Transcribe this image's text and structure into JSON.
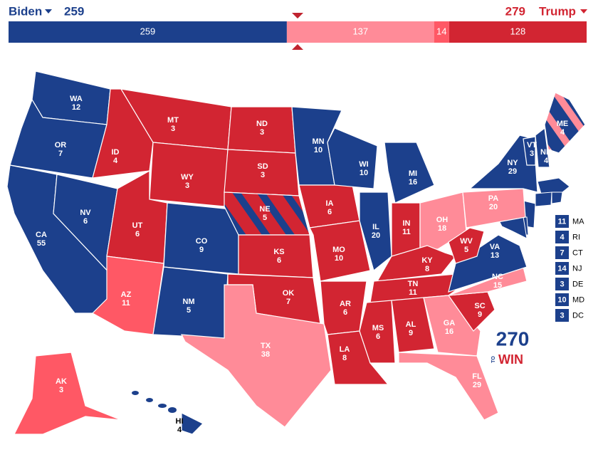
{
  "header": {
    "left": {
      "name": "Biden",
      "total": 259,
      "color": "#1c408c"
    },
    "right": {
      "name": "Trump",
      "total": 279,
      "color": "#d22532"
    }
  },
  "bar": {
    "segments": [
      {
        "value": 259,
        "color": "#1c408c"
      },
      {
        "value": 137,
        "color": "#ff8b98"
      },
      {
        "value": 14,
        "color": "#ff5865"
      },
      {
        "value": 128,
        "color": "#d22532"
      }
    ]
  },
  "states": [
    {
      "label": "WA",
      "votes": 12,
      "color": "#1c408c"
    },
    {
      "label": "OR",
      "votes": 7,
      "color": "#1c408c"
    },
    {
      "label": "CA",
      "votes": 55,
      "color": "#1c408c"
    },
    {
      "label": "NV",
      "votes": 6,
      "color": "#1c408c"
    },
    {
      "label": "ID",
      "votes": 4,
      "color": "#d22532"
    },
    {
      "label": "MT",
      "votes": 3,
      "color": "#d22532"
    },
    {
      "label": "WY",
      "votes": 3,
      "color": "#d22532"
    },
    {
      "label": "UT",
      "votes": 6,
      "color": "#d22532"
    },
    {
      "label": "CO",
      "votes": 9,
      "color": "#1c408c"
    },
    {
      "label": "AZ",
      "votes": 11,
      "color": "#ff5865"
    },
    {
      "label": "NM",
      "votes": 5,
      "color": "#1c408c"
    },
    {
      "label": "ND",
      "votes": 3,
      "color": "#d22532"
    },
    {
      "label": "SD",
      "votes": 3,
      "color": "#d22532"
    },
    {
      "label": "NE",
      "votes": 5,
      "color": "#d22532",
      "stripe": "#1c408c"
    },
    {
      "label": "KS",
      "votes": 6,
      "color": "#d22532"
    },
    {
      "label": "OK",
      "votes": 7,
      "color": "#d22532"
    },
    {
      "label": "TX",
      "votes": 38,
      "color": "#ff8b98"
    },
    {
      "label": "MN",
      "votes": 10,
      "color": "#1c408c"
    },
    {
      "label": "IA",
      "votes": 6,
      "color": "#d22532"
    },
    {
      "label": "MO",
      "votes": 10,
      "color": "#d22532"
    },
    {
      "label": "AR",
      "votes": 6,
      "color": "#d22532"
    },
    {
      "label": "LA",
      "votes": 8,
      "color": "#d22532"
    },
    {
      "label": "WI",
      "votes": 10,
      "color": "#1c408c"
    },
    {
      "label": "IL",
      "votes": 20,
      "color": "#1c408c"
    },
    {
      "label": "MI",
      "votes": 16,
      "color": "#1c408c"
    },
    {
      "label": "IN",
      "votes": 11,
      "color": "#d22532"
    },
    {
      "label": "OH",
      "votes": 18,
      "color": "#ff8b98"
    },
    {
      "label": "KY",
      "votes": 8,
      "color": "#d22532"
    },
    {
      "label": "TN",
      "votes": 11,
      "color": "#d22532"
    },
    {
      "label": "MS",
      "votes": 6,
      "color": "#d22532"
    },
    {
      "label": "AL",
      "votes": 9,
      "color": "#d22532"
    },
    {
      "label": "GA",
      "votes": 16,
      "color": "#ff8b98"
    },
    {
      "label": "FL",
      "votes": 29,
      "color": "#ff8b98"
    },
    {
      "label": "SC",
      "votes": 9,
      "color": "#d22532"
    },
    {
      "label": "NC",
      "votes": 15,
      "color": "#ff8b98"
    },
    {
      "label": "VA",
      "votes": 13,
      "color": "#1c408c"
    },
    {
      "label": "WV",
      "votes": 5,
      "color": "#d22532"
    },
    {
      "label": "PA",
      "votes": 20,
      "color": "#ff8b98"
    },
    {
      "label": "NY",
      "votes": 29,
      "color": "#1c408c"
    },
    {
      "label": "VT",
      "votes": 3,
      "color": "#1c408c"
    },
    {
      "label": "NH",
      "votes": 4,
      "color": "#1c408c"
    },
    {
      "label": "ME",
      "votes": 4,
      "color": "#1c408c",
      "stripe": "#ff8b98"
    },
    {
      "label": "AK",
      "votes": 3,
      "color": "#ff5865"
    },
    {
      "label": "HI",
      "votes": 4,
      "color": "#1c408c"
    }
  ],
  "small_states": [
    {
      "label": "MA",
      "votes": 11,
      "color": "#1c408c"
    },
    {
      "label": "RI",
      "votes": 4,
      "color": "#1c408c"
    },
    {
      "label": "CT",
      "votes": 7,
      "color": "#1c408c"
    },
    {
      "label": "NJ",
      "votes": 14,
      "color": "#1c408c"
    },
    {
      "label": "DE",
      "votes": 3,
      "color": "#1c408c"
    },
    {
      "label": "MD",
      "votes": 10,
      "color": "#1c408c"
    },
    {
      "label": "DC",
      "votes": 3,
      "color": "#1c408c"
    }
  ],
  "logo": {
    "number": "270",
    "to": "TO",
    "win": "WIN"
  }
}
